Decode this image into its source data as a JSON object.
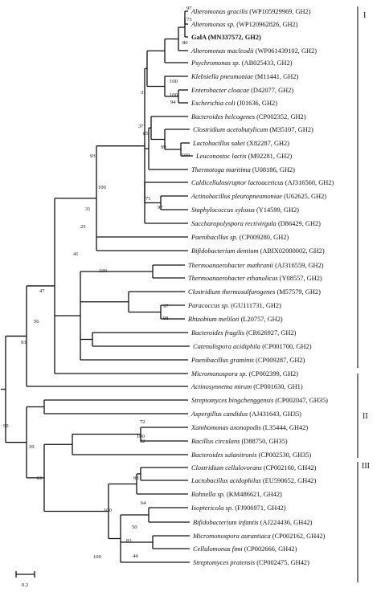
{
  "tree": {
    "leaves": [
      {
        "species": "Alteromonas gracilis",
        "detail": " (WP105929969, GH2)"
      },
      {
        "species": "Alteromonas sp.",
        "detail": " (WP120962826, GH2)"
      },
      {
        "species": "GalA (MN337572, GH2)",
        "detail": "",
        "bold": true
      },
      {
        "species": "Alteromonas macleodii",
        "detail": " (WP061439102, GH2)"
      },
      {
        "species": "Psychromonas sp.",
        "detail": " (AB025433, GH2)"
      },
      {
        "species": "Klebsiella pneumoniae",
        "detail": " (M11441, GH2)"
      },
      {
        "species": "Enterobacter cloacae",
        "detail": " (D42077, GH2)"
      },
      {
        "species": "Escherichia coli",
        "detail": " (J01636, GH2)"
      },
      {
        "species": "Bacteroides helcogenes",
        "detail": " (CP002352, GH2)"
      },
      {
        "species": "Clostridium acetobutylicum",
        "detail": " (M35107, GH2)"
      },
      {
        "species": "Lactobacillus sakei",
        "detail": " (X82287, GH2)"
      },
      {
        "species": "Leuconostoc lactis",
        "detail": " (M92281, GH2)"
      },
      {
        "species": "Thermotoga maritima",
        "detail": " (U08186, GH2)"
      },
      {
        "species": "Caldicellulosiruptor lactoaceticus",
        "detail": " (AJ316560, GH2)"
      },
      {
        "species": "Actinobacillus pleuropneumoniae",
        "detail": " (U62625, GH2)"
      },
      {
        "species": "Staphylococcus xylosus",
        "detail": " (Y14599, GH2)"
      },
      {
        "species": "Saccharopolyspora rectivirgula",
        "detail": " (D86429, GH2)"
      },
      {
        "species": "Paenibacillus sp.",
        "detail": " (CP009280, GH2)"
      },
      {
        "species": "Bifidobacterium dentium",
        "detail": " (ABIX02000002, GH2)"
      },
      {
        "species": "Thermoanaerobacter mathranii",
        "detail": " (AJ316559, GH2)"
      },
      {
        "species": "Thermoanaerobacter ethanolicus",
        "detail": " (Y08557, GH2)"
      },
      {
        "species": "Clostridium thermosulfurogenes",
        "detail": " (M57579, GH2)"
      },
      {
        "species": "Paracoccus sp.",
        "detail": " (GU111731, GH2)"
      },
      {
        "species": "Rhizobium meliloti",
        "detail": " (L20757, GH2)"
      },
      {
        "species": "Bacteroides fragilis",
        "detail": " (CR626927, GH2)"
      },
      {
        "species": "Catenulispora acidiphila",
        "detail": " (CP001700, GH2)"
      },
      {
        "species": "Paenibacillus graminis",
        "detail": " (CP009287, GH2)"
      },
      {
        "species": "Micromonospora sp.",
        "detail": " (CP002399, GH2)"
      },
      {
        "species": "Actinosynnema mirum",
        "detail": " (CP001630, GH1)"
      },
      {
        "species": "Streptomyces bingchenggensis",
        "detail": " (CP002047, GH35)"
      },
      {
        "species": "Aspergillus candidus",
        "detail": " (AJ431643, GH35)"
      },
      {
        "species": "Xanthomonas axonopodis",
        "detail": " (L35444, GH42)"
      },
      {
        "species": "Bacillus circulans",
        "detail": " (D88750, GH35)"
      },
      {
        "species": "Bacteroides salanitronis",
        "detail": " (CP002530, GH35)"
      },
      {
        "species": "Clostridium cellulovorans",
        "detail": " (CP002160, GH42)"
      },
      {
        "species": "Lactobacillus acidophilus",
        "detail": " (EU590652, GH42)"
      },
      {
        "species": "Rahnella sp.",
        "detail": " (KM486621, GH42)"
      },
      {
        "species": "Isoptericola sp.",
        "detail": " (FJ906971, GH42)"
      },
      {
        "species": "Bifidobacterium infantis",
        "detail": " (AJ224436, GH42)"
      },
      {
        "species": "Micromonospora aurantiaca",
        "detail": " (CP002162, GH42)"
      },
      {
        "species": "Cellulomonas fimi",
        "detail": " (CP002666, GH42)"
      },
      {
        "species": "Streptomyces pratensis",
        "detail": " (CP002475, GH42)"
      }
    ],
    "bootstrap": [
      "97",
      "73",
      "80",
      "100",
      "100",
      "94",
      "31",
      "37",
      "85",
      "99",
      "100",
      "93",
      "100",
      "71",
      "97",
      "31",
      "25",
      "100",
      "41",
      "97",
      "98",
      "47",
      "56",
      "93",
      "72",
      "100",
      "82",
      "98",
      "64",
      "100",
      "50",
      "83",
      "44",
      "100",
      "61",
      "39",
      "90"
    ],
    "groups": [
      "I",
      "II",
      "III"
    ],
    "scale_label": "0.2"
  }
}
